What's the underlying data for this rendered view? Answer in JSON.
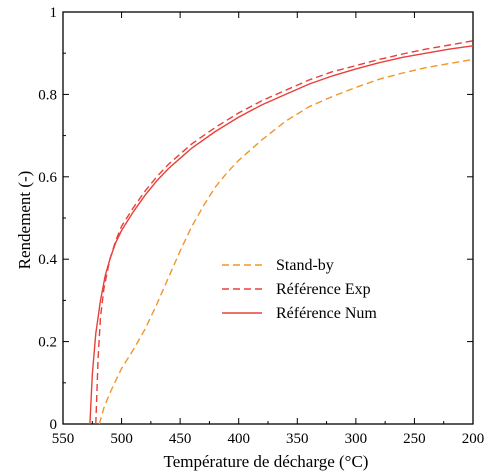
{
  "chart_data": {
    "type": "line",
    "xlabel": "Température de décharge (°C)",
    "ylabel": "Rendement (-)",
    "xlim": [
      550,
      200
    ],
    "ylim": [
      0,
      1
    ],
    "x_reversed": true,
    "x_ticks": [
      550,
      500,
      450,
      400,
      350,
      300,
      250,
      200
    ],
    "x_tick_labels": [
      "550",
      "500",
      "450",
      "400",
      "350",
      "300",
      "250",
      "200"
    ],
    "y_ticks": [
      0,
      0.2,
      0.4,
      0.6,
      0.8,
      1
    ],
    "y_tick_labels": [
      "0",
      "0.2",
      "0.4",
      "0.6",
      "0.8",
      "1"
    ],
    "grid": false,
    "legend_position": "center-right",
    "series": [
      {
        "name": "Stand-by",
        "color": "#f0962a",
        "dash": "dashed",
        "x": [
          519,
          515,
          510,
          505,
          500,
          490,
          480,
          470,
          460,
          450,
          440,
          430,
          420,
          410,
          400,
          380,
          360,
          340,
          320,
          300,
          280,
          260,
          240,
          220,
          200
        ],
        "y": [
          0.0,
          0.04,
          0.075,
          0.105,
          0.135,
          0.18,
          0.23,
          0.29,
          0.355,
          0.42,
          0.48,
          0.53,
          0.575,
          0.61,
          0.64,
          0.69,
          0.735,
          0.77,
          0.795,
          0.817,
          0.837,
          0.852,
          0.865,
          0.875,
          0.885
        ]
      },
      {
        "name": "Référence Exp",
        "color": "#e8403a",
        "dash": "dashed",
        "x": [
          522,
          520,
          518,
          515,
          510,
          505,
          500,
          490,
          480,
          470,
          460,
          450,
          440,
          420,
          400,
          380,
          360,
          340,
          320,
          300,
          280,
          260,
          240,
          220,
          200
        ],
        "y": [
          0.0,
          0.16,
          0.26,
          0.33,
          0.4,
          0.445,
          0.48,
          0.525,
          0.565,
          0.6,
          0.63,
          0.655,
          0.68,
          0.72,
          0.755,
          0.785,
          0.81,
          0.835,
          0.855,
          0.87,
          0.885,
          0.898,
          0.91,
          0.92,
          0.93
        ]
      },
      {
        "name": "Référence Num",
        "color": "#e8403a",
        "dash": "solid",
        "x": [
          527,
          525,
          522,
          518,
          514,
          510,
          505,
          500,
          490,
          480,
          470,
          460,
          450,
          440,
          420,
          400,
          380,
          360,
          340,
          320,
          300,
          280,
          260,
          240,
          220,
          200
        ],
        "y": [
          0.0,
          0.12,
          0.22,
          0.3,
          0.36,
          0.4,
          0.44,
          0.47,
          0.515,
          0.555,
          0.59,
          0.62,
          0.645,
          0.67,
          0.71,
          0.745,
          0.775,
          0.8,
          0.825,
          0.845,
          0.862,
          0.877,
          0.89,
          0.9,
          0.91,
          0.918
        ]
      }
    ]
  }
}
